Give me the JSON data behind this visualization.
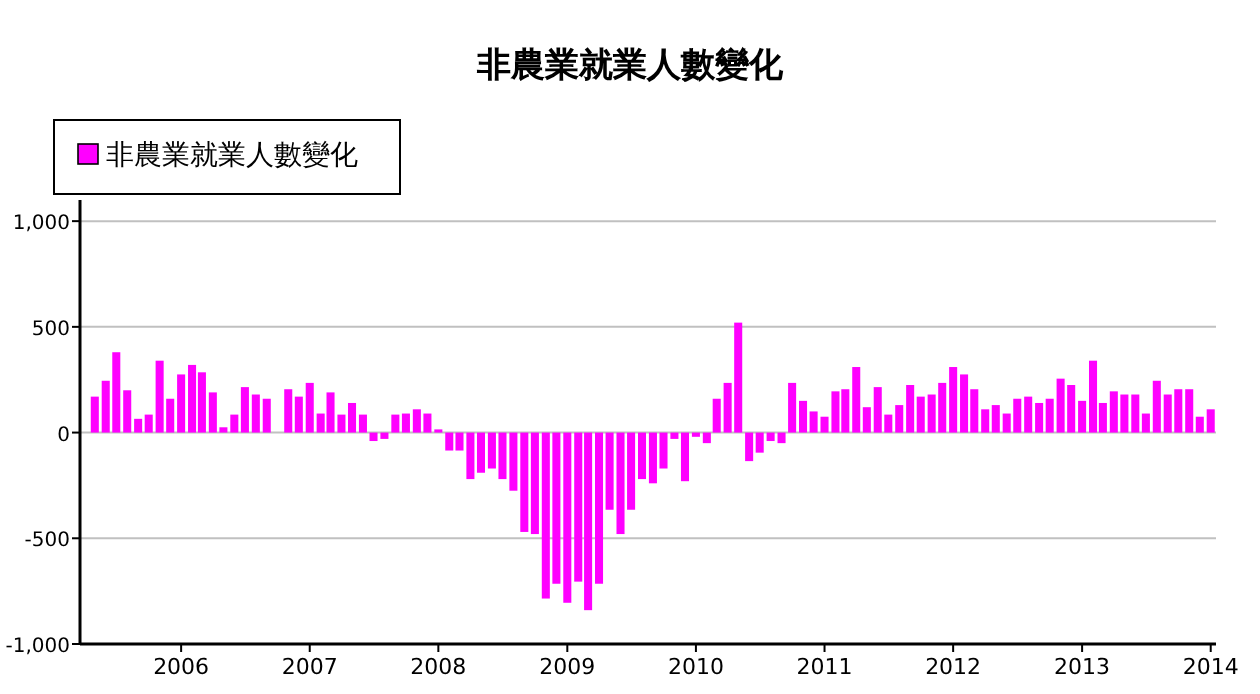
{
  "chart_data": {
    "type": "bar",
    "title": "非農業就業人數變化",
    "legend": "top left",
    "grid": "y",
    "x": [
      "2005-05",
      "2005-06",
      "2005-07",
      "2005-08",
      "2005-09",
      "2005-10",
      "2005-11",
      "2005-12",
      "2006-01",
      "2006-02",
      "2006-03",
      "2006-04",
      "2006-05",
      "2006-06",
      "2006-07",
      "2006-08",
      "2006-09",
      "2006-10",
      "2006-11",
      "2006-12",
      "2007-01",
      "2007-02",
      "2007-03",
      "2007-04",
      "2007-05",
      "2007-06",
      "2007-07",
      "2007-08",
      "2007-09",
      "2007-10",
      "2007-11",
      "2007-12",
      "2008-01",
      "2008-02",
      "2008-03",
      "2008-04",
      "2008-05",
      "2008-06",
      "2008-07",
      "2008-08",
      "2008-09",
      "2008-10",
      "2008-11",
      "2008-12",
      "2009-01",
      "2009-02",
      "2009-03",
      "2009-04",
      "2009-05",
      "2009-06",
      "2009-07",
      "2009-08",
      "2009-09",
      "2009-10",
      "2009-11",
      "2009-12",
      "2010-01",
      "2010-02",
      "2010-03",
      "2010-04",
      "2010-05",
      "2010-06",
      "2010-07",
      "2010-08",
      "2010-09",
      "2010-10",
      "2010-11",
      "2010-12",
      "2011-01",
      "2011-02",
      "2011-03",
      "2011-04",
      "2011-05",
      "2011-06",
      "2011-07",
      "2011-08",
      "2011-09",
      "2011-10",
      "2011-11",
      "2011-12",
      "2012-01",
      "2012-02",
      "2012-03",
      "2012-04",
      "2012-05",
      "2012-06",
      "2012-07",
      "2012-08",
      "2012-09",
      "2012-10",
      "2012-11",
      "2012-12",
      "2013-01",
      "2013-02",
      "2013-03",
      "2013-04",
      "2013-05",
      "2013-06",
      "2013-07",
      "2013-08",
      "2013-09",
      "2013-10",
      "2013-11",
      "2013-12",
      "2014-01"
    ],
    "series": [
      {
        "name": "非農業就業人數變化",
        "color": "#ff00ff",
        "values": [
          170,
          245,
          380,
          200,
          65,
          85,
          340,
          160,
          275,
          320,
          285,
          190,
          25,
          85,
          215,
          180,
          160,
          0,
          205,
          170,
          235,
          90,
          190,
          85,
          140,
          85,
          -40,
          -30,
          85,
          90,
          110,
          90,
          15,
          -85,
          -85,
          -220,
          -190,
          -170,
          -220,
          -275,
          -470,
          -480,
          -785,
          -715,
          -805,
          -705,
          -840,
          -715,
          -365,
          -480,
          -365,
          -220,
          -240,
          -170,
          -30,
          -230,
          -20,
          -50,
          160,
          235,
          520,
          -135,
          -95,
          -40,
          -50,
          235,
          150,
          100,
          75,
          195,
          205,
          310,
          120,
          215,
          85,
          130,
          225,
          170,
          180,
          235,
          310,
          275,
          205,
          110,
          130,
          90,
          160,
          170,
          140,
          160,
          255,
          225,
          150,
          340,
          140,
          195,
          180,
          180,
          90,
          245,
          180,
          205,
          205,
          75,
          110
        ]
      }
    ],
    "ylim": [
      -1000,
      1100
    ],
    "yticks": [
      {
        "value": -1000,
        "label": "-1,000"
      },
      {
        "value": -500,
        "label": "-500"
      },
      0,
      500,
      {
        "value": 1000,
        "label": "1,000"
      }
    ],
    "xlim": [
      "2005-03-20",
      "2014-01-16"
    ],
    "xticks": [
      "2006",
      "2007",
      "2008",
      "2009",
      "2010",
      "2011",
      "2012",
      "2013",
      "2014"
    ]
  }
}
